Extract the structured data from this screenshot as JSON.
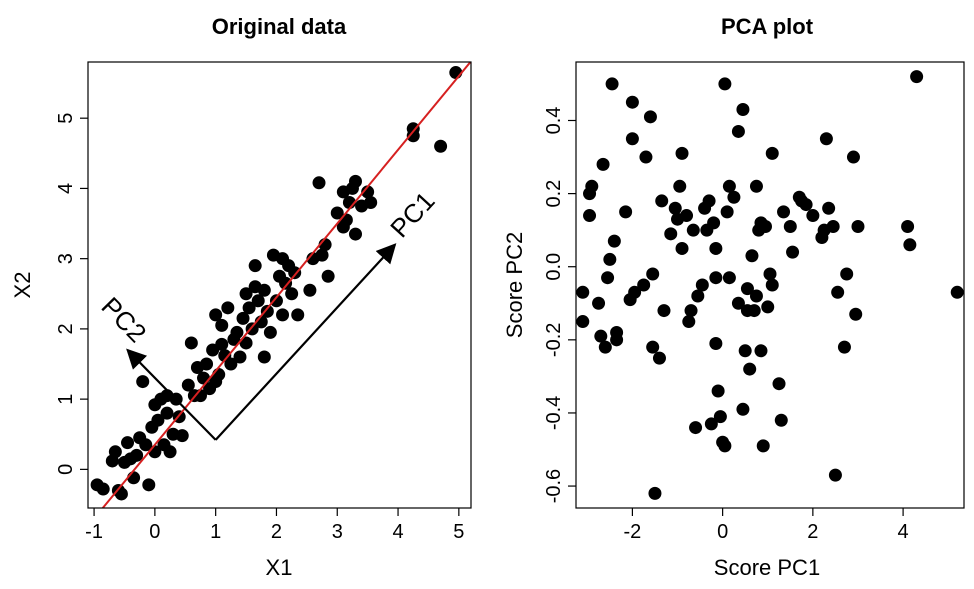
{
  "chart_data": [
    {
      "type": "scatter",
      "title": "Original data",
      "xlabel": "X1",
      "ylabel": "X2",
      "xlim": [
        -1.1,
        5.2
      ],
      "ylim": [
        -0.55,
        5.8
      ],
      "xticks": [
        "-1",
        "0",
        "1",
        "2",
        "3",
        "4",
        "5"
      ],
      "yticks": [
        "0",
        "1",
        "2",
        "3",
        "4",
        "5"
      ],
      "grid": false,
      "regression_line": {
        "color": "#d62020",
        "intercept": 0.35,
        "slope": 1.05
      },
      "pc_arrows": [
        {
          "label": "PC1",
          "from": [
            1.0,
            0.42
          ],
          "to": [
            3.95,
            3.2
          ]
        },
        {
          "label": "PC2",
          "from": [
            1.0,
            0.42
          ],
          "to": [
            -0.45,
            1.7
          ]
        }
      ],
      "points": [
        [
          -0.95,
          -0.22
        ],
        [
          -0.85,
          -0.28
        ],
        [
          -0.7,
          0.12
        ],
        [
          -0.65,
          0.25
        ],
        [
          -0.6,
          -0.3
        ],
        [
          -0.55,
          -0.35
        ],
        [
          -0.5,
          0.1
        ],
        [
          -0.45,
          0.38
        ],
        [
          -0.4,
          0.15
        ],
        [
          -0.35,
          -0.12
        ],
        [
          -0.3,
          0.2
        ],
        [
          -0.25,
          0.45
        ],
        [
          -0.2,
          1.25
        ],
        [
          -0.15,
          0.35
        ],
        [
          -0.1,
          -0.22
        ],
        [
          -0.05,
          0.6
        ],
        [
          0.0,
          0.25
        ],
        [
          0.0,
          0.92
        ],
        [
          0.05,
          0.7
        ],
        [
          0.1,
          1.0
        ],
        [
          0.15,
          0.35
        ],
        [
          0.2,
          0.8
        ],
        [
          0.2,
          1.05
        ],
        [
          0.25,
          0.25
        ],
        [
          0.3,
          0.5
        ],
        [
          0.35,
          1.0
        ],
        [
          0.4,
          0.75
        ],
        [
          0.45,
          0.48
        ],
        [
          0.55,
          1.2
        ],
        [
          0.6,
          1.8
        ],
        [
          0.65,
          1.05
        ],
        [
          0.7,
          1.45
        ],
        [
          0.75,
          1.05
        ],
        [
          0.8,
          1.3
        ],
        [
          0.85,
          1.5
        ],
        [
          0.9,
          1.15
        ],
        [
          0.95,
          1.7
        ],
        [
          1.0,
          1.25
        ],
        [
          1.0,
          2.2
        ],
        [
          1.05,
          1.35
        ],
        [
          1.1,
          1.78
        ],
        [
          1.1,
          2.05
        ],
        [
          1.15,
          1.62
        ],
        [
          1.2,
          2.3
        ],
        [
          1.25,
          1.5
        ],
        [
          1.3,
          1.85
        ],
        [
          1.35,
          1.95
        ],
        [
          1.4,
          1.6
        ],
        [
          1.45,
          2.15
        ],
        [
          1.5,
          1.8
        ],
        [
          1.5,
          2.5
        ],
        [
          1.55,
          2.3
        ],
        [
          1.6,
          2.0
        ],
        [
          1.65,
          2.6
        ],
        [
          1.65,
          2.9
        ],
        [
          1.7,
          2.4
        ],
        [
          1.75,
          2.1
        ],
        [
          1.8,
          1.6
        ],
        [
          1.8,
          2.55
        ],
        [
          1.85,
          2.25
        ],
        [
          1.9,
          1.95
        ],
        [
          1.95,
          3.05
        ],
        [
          2.0,
          2.4
        ],
        [
          2.05,
          2.75
        ],
        [
          2.1,
          2.2
        ],
        [
          2.1,
          3.0
        ],
        [
          2.15,
          2.65
        ],
        [
          2.2,
          2.9
        ],
        [
          2.25,
          2.5
        ],
        [
          2.3,
          2.8
        ],
        [
          2.35,
          2.2
        ],
        [
          2.55,
          2.55
        ],
        [
          2.6,
          3.0
        ],
        [
          2.7,
          4.08
        ],
        [
          2.75,
          3.05
        ],
        [
          2.8,
          3.2
        ],
        [
          2.85,
          2.75
        ],
        [
          3.0,
          3.65
        ],
        [
          3.1,
          3.45
        ],
        [
          3.1,
          3.95
        ],
        [
          3.15,
          3.55
        ],
        [
          3.2,
          3.8
        ],
        [
          3.25,
          4.0
        ],
        [
          3.3,
          3.35
        ],
        [
          3.3,
          4.1
        ],
        [
          3.4,
          3.75
        ],
        [
          3.5,
          3.95
        ],
        [
          3.55,
          3.8
        ],
        [
          4.25,
          4.75
        ],
        [
          4.25,
          4.85
        ],
        [
          4.7,
          4.6
        ],
        [
          4.95,
          5.65
        ]
      ]
    },
    {
      "type": "scatter",
      "title": "PCA plot",
      "xlabel": "Score PC1",
      "ylabel": "Score PC2",
      "xlim": [
        -3.25,
        5.35
      ],
      "ylim": [
        -0.66,
        0.56
      ],
      "xticks": [
        "-2",
        "0",
        "2",
        "4"
      ],
      "yticks": [
        "-0.6",
        "-0.4",
        "-0.2",
        "0.0",
        "0.2",
        "0.4"
      ],
      "grid": false,
      "points": [
        [
          -3.1,
          -0.07
        ],
        [
          -3.1,
          -0.15
        ],
        [
          -2.95,
          0.2
        ],
        [
          -2.95,
          0.14
        ],
        [
          -2.9,
          0.22
        ],
        [
          -2.75,
          -0.1
        ],
        [
          -2.7,
          -0.19
        ],
        [
          -2.65,
          0.28
        ],
        [
          -2.6,
          -0.22
        ],
        [
          -2.55,
          -0.03
        ],
        [
          -2.5,
          0.02
        ],
        [
          -2.45,
          0.5
        ],
        [
          -2.4,
          0.07
        ],
        [
          -2.35,
          -0.18
        ],
        [
          -2.35,
          -0.2
        ],
        [
          -2.15,
          0.15
        ],
        [
          -2.05,
          -0.09
        ],
        [
          -2.0,
          0.45
        ],
        [
          -2.0,
          0.35
        ],
        [
          -1.95,
          -0.07
        ],
        [
          -1.75,
          -0.05
        ],
        [
          -1.7,
          0.3
        ],
        [
          -1.6,
          0.41
        ],
        [
          -1.55,
          -0.02
        ],
        [
          -1.55,
          -0.22
        ],
        [
          -1.5,
          -0.62
        ],
        [
          -1.4,
          -0.25
        ],
        [
          -1.35,
          0.18
        ],
        [
          -1.3,
          -0.12
        ],
        [
          -1.15,
          0.09
        ],
        [
          -1.05,
          0.16
        ],
        [
          -1.0,
          0.13
        ],
        [
          -0.95,
          0.22
        ],
        [
          -0.9,
          0.31
        ],
        [
          -0.9,
          0.05
        ],
        [
          -0.8,
          0.14
        ],
        [
          -0.75,
          -0.15
        ],
        [
          -0.7,
          -0.12
        ],
        [
          -0.65,
          0.1
        ],
        [
          -0.6,
          -0.44
        ],
        [
          -0.55,
          -0.08
        ],
        [
          -0.45,
          -0.05
        ],
        [
          -0.4,
          0.16
        ],
        [
          -0.35,
          0.1
        ],
        [
          -0.3,
          0.18
        ],
        [
          -0.25,
          -0.43
        ],
        [
          -0.2,
          0.12
        ],
        [
          -0.15,
          -0.03
        ],
        [
          -0.15,
          0.05
        ],
        [
          -0.15,
          -0.21
        ],
        [
          -0.1,
          -0.34
        ],
        [
          -0.05,
          -0.41
        ],
        [
          0.0,
          -0.48
        ],
        [
          0.05,
          0.5
        ],
        [
          0.05,
          -0.49
        ],
        [
          0.1,
          0.15
        ],
        [
          0.15,
          0.22
        ],
        [
          0.15,
          -0.03
        ],
        [
          0.25,
          0.19
        ],
        [
          0.35,
          -0.1
        ],
        [
          0.35,
          0.37
        ],
        [
          0.45,
          0.43
        ],
        [
          0.45,
          -0.39
        ],
        [
          0.5,
          -0.23
        ],
        [
          0.55,
          -0.12
        ],
        [
          0.55,
          -0.06
        ],
        [
          0.6,
          -0.28
        ],
        [
          0.65,
          0.03
        ],
        [
          0.7,
          -0.12
        ],
        [
          0.75,
          -0.08
        ],
        [
          0.75,
          0.22
        ],
        [
          0.8,
          0.1
        ],
        [
          0.85,
          0.12
        ],
        [
          0.85,
          -0.23
        ],
        [
          0.9,
          -0.49
        ],
        [
          0.95,
          0.11
        ],
        [
          1.0,
          -0.11
        ],
        [
          1.05,
          -0.02
        ],
        [
          1.1,
          0.31
        ],
        [
          1.1,
          -0.05
        ],
        [
          1.25,
          -0.32
        ],
        [
          1.3,
          -0.42
        ],
        [
          1.35,
          0.15
        ],
        [
          1.5,
          0.11
        ],
        [
          1.55,
          0.04
        ],
        [
          1.7,
          0.19
        ],
        [
          1.75,
          0.18
        ],
        [
          1.85,
          0.17
        ],
        [
          2.0,
          0.14
        ],
        [
          2.2,
          0.08
        ],
        [
          2.25,
          0.1
        ],
        [
          2.3,
          0.35
        ],
        [
          2.35,
          0.16
        ],
        [
          2.45,
          0.11
        ],
        [
          2.5,
          -0.57
        ],
        [
          2.55,
          -0.07
        ],
        [
          2.7,
          -0.22
        ],
        [
          2.75,
          -0.02
        ],
        [
          2.9,
          0.3
        ],
        [
          2.95,
          -0.13
        ],
        [
          3.0,
          0.11
        ],
        [
          4.1,
          0.11
        ],
        [
          4.15,
          0.06
        ],
        [
          4.3,
          0.52
        ],
        [
          5.2,
          -0.07
        ]
      ]
    }
  ]
}
